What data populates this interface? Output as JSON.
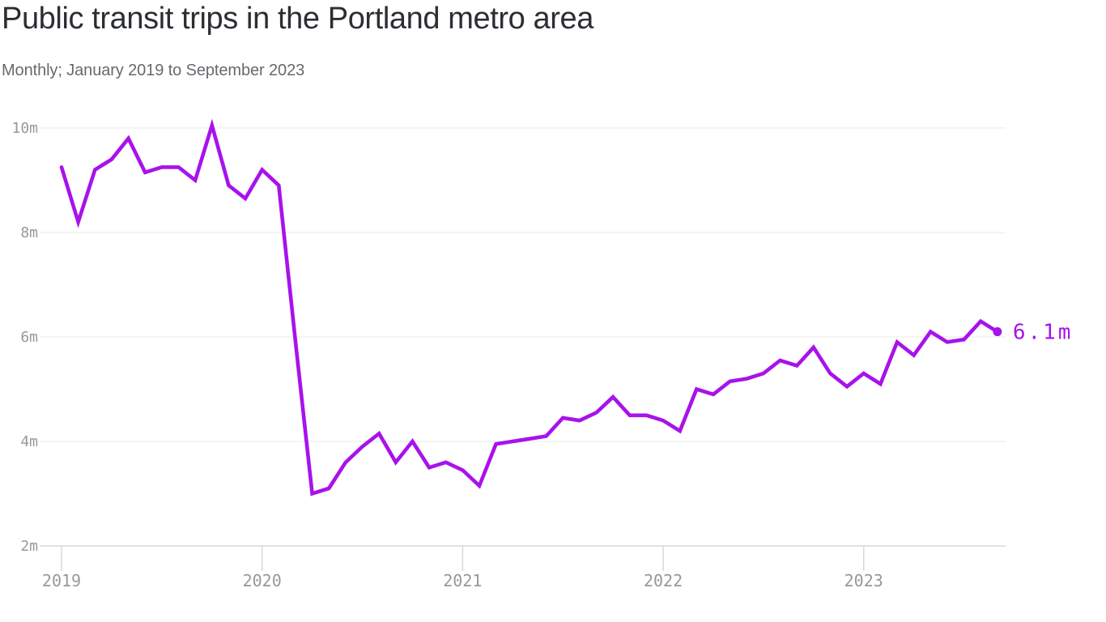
{
  "header": {
    "title": "Public transit trips in the Portland metro area",
    "subtitle": "Monthly; January 2019 to September 2023"
  },
  "chart_data": {
    "type": "line",
    "title": "Public transit trips in the Portland metro area",
    "subtitle": "Monthly; January 2019 to September 2023",
    "unit": "millions of trips per month",
    "x": [
      "2019-01",
      "2019-02",
      "2019-03",
      "2019-04",
      "2019-05",
      "2019-06",
      "2019-07",
      "2019-08",
      "2019-09",
      "2019-10",
      "2019-11",
      "2019-12",
      "2020-01",
      "2020-02",
      "2020-03",
      "2020-04",
      "2020-05",
      "2020-06",
      "2020-07",
      "2020-08",
      "2020-09",
      "2020-10",
      "2020-11",
      "2020-12",
      "2021-01",
      "2021-02",
      "2021-03",
      "2021-04",
      "2021-05",
      "2021-06",
      "2021-07",
      "2021-08",
      "2021-09",
      "2021-10",
      "2021-11",
      "2021-12",
      "2022-01",
      "2022-02",
      "2022-03",
      "2022-04",
      "2022-05",
      "2022-06",
      "2022-07",
      "2022-08",
      "2022-09",
      "2022-10",
      "2022-11",
      "2022-12",
      "2023-01",
      "2023-02",
      "2023-03",
      "2023-04",
      "2023-05",
      "2023-06",
      "2023-07",
      "2023-08",
      "2023-09"
    ],
    "series": [
      {
        "name": "Public transit trips (millions)",
        "values": [
          9.25,
          8.2,
          9.2,
          9.4,
          9.8,
          9.15,
          9.25,
          9.25,
          9.0,
          10.05,
          8.9,
          8.65,
          9.2,
          8.9,
          5.9,
          3.0,
          3.1,
          3.6,
          3.9,
          4.15,
          3.6,
          4.0,
          3.5,
          3.6,
          3.45,
          3.15,
          3.95,
          4.0,
          4.05,
          4.1,
          4.45,
          4.4,
          4.55,
          4.85,
          4.5,
          4.5,
          4.4,
          4.2,
          5.0,
          4.9,
          5.15,
          5.2,
          5.3,
          5.55,
          5.45,
          5.8,
          5.3,
          5.05,
          5.3,
          5.1,
          5.9,
          5.65,
          6.1,
          5.9,
          5.95,
          6.3,
          6.1
        ]
      }
    ],
    "ylim": [
      2,
      10
    ],
    "y_ticks": [
      {
        "value": 10,
        "label": "10m"
      },
      {
        "value": 8,
        "label": "8m"
      },
      {
        "value": 6,
        "label": "6m"
      },
      {
        "value": 4,
        "label": "4m"
      },
      {
        "value": 2,
        "label": "2m"
      }
    ],
    "x_ticks": [
      {
        "index": 0,
        "label": "2019"
      },
      {
        "index": 12,
        "label": "2020"
      },
      {
        "index": 24,
        "label": "2021"
      },
      {
        "index": 36,
        "label": "2022"
      },
      {
        "index": 48,
        "label": "2023"
      }
    ],
    "end_label": "6.1m",
    "grid": "horizontal",
    "legend": false,
    "colors": {
      "line": "#a812eb",
      "grid": "#e8e8ea",
      "axis": "#d7d8da",
      "tick_label": "#95989d",
      "title": "#2b2e33",
      "subtitle": "#67696e"
    }
  }
}
